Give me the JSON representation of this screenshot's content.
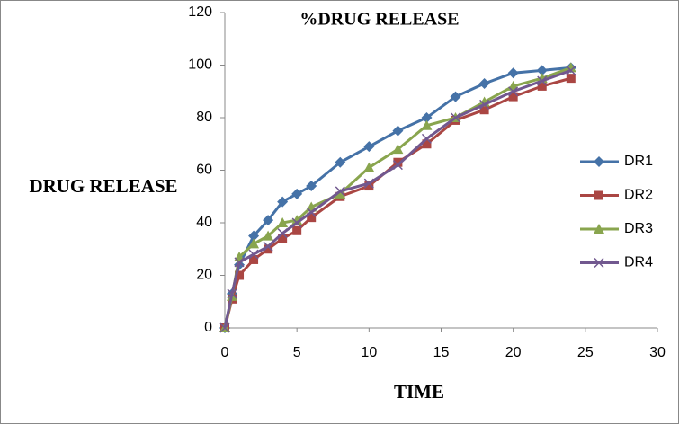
{
  "chart_data": {
    "type": "line",
    "title": "%DRUG RELEASE",
    "x_label": "TIME",
    "y_label": "DRUG RELEASE",
    "x": [
      0,
      0.5,
      1,
      2,
      3,
      4,
      5,
      6,
      8,
      10,
      12,
      14,
      16,
      18,
      20,
      22,
      24
    ],
    "series": [
      {
        "name": "DR1",
        "color": "#4572a7",
        "marker": "diamond",
        "values": [
          0,
          13,
          24,
          35,
          41,
          48,
          51,
          54,
          63,
          69,
          75,
          80,
          88,
          93,
          97,
          98,
          99
        ]
      },
      {
        "name": "DR2",
        "color": "#aa4643",
        "marker": "square",
        "values": [
          0,
          11,
          20,
          26,
          30,
          34,
          37,
          42,
          50,
          54,
          63,
          70,
          79,
          83,
          88,
          92,
          95
        ]
      },
      {
        "name": "DR3",
        "color": "#89a54e",
        "marker": "triangle",
        "values": [
          0,
          12,
          27,
          32,
          35,
          40,
          41,
          46,
          51,
          61,
          68,
          77,
          80,
          86,
          92,
          95,
          99
        ]
      },
      {
        "name": "DR4",
        "color": "#71588f",
        "marker": "cross",
        "values": [
          0,
          13,
          25,
          28,
          31,
          36,
          40,
          44,
          52,
          55,
          62,
          72,
          80,
          85,
          90,
          94,
          98
        ]
      }
    ],
    "xlim": [
      0,
      30
    ],
    "xticks": [
      0,
      5,
      10,
      15,
      20,
      25,
      30
    ],
    "ylim": [
      0,
      120
    ],
    "yticks": [
      0,
      20,
      40,
      60,
      80,
      100,
      120
    ],
    "grid": false,
    "legend": "right"
  }
}
